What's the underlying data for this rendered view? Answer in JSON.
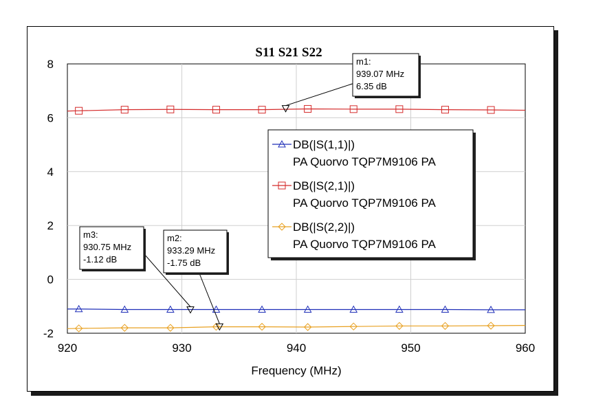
{
  "chart_data": {
    "type": "line",
    "title": "S11 S21 S22",
    "xlabel": "Frequency (MHz)",
    "ylabel": "",
    "xlim": [
      920,
      960
    ],
    "ylim": [
      -2,
      8
    ],
    "xticks": [
      "920",
      "930",
      "940",
      "950",
      "960"
    ],
    "yticks": [
      "8",
      "6",
      "4",
      "2",
      "0",
      "-2"
    ],
    "grid": true,
    "legend_position": "right",
    "series": [
      {
        "name": "DB(|S(1,1)|)",
        "subname": "PA Quorvo TQP7M9106 PA",
        "color": "#1f2fb8",
        "marker": "triangle-up",
        "x": [
          920,
          921,
          925,
          929,
          933,
          937,
          941,
          945,
          949,
          953,
          957,
          960
        ],
        "y": [
          -1.1,
          -1.1,
          -1.12,
          -1.12,
          -1.12,
          -1.12,
          -1.12,
          -1.12,
          -1.12,
          -1.12,
          -1.13,
          -1.13
        ]
      },
      {
        "name": "DB(|S(2,1)|)",
        "subname": "PA Quorvo TQP7M9106 PA",
        "color": "#d42a2a",
        "marker": "square",
        "x": [
          920,
          921,
          925,
          929,
          933,
          937,
          941,
          945,
          949,
          953,
          957,
          960
        ],
        "y": [
          6.25,
          6.26,
          6.3,
          6.31,
          6.3,
          6.3,
          6.33,
          6.32,
          6.32,
          6.3,
          6.29,
          6.28
        ]
      },
      {
        "name": "DB(|S(2,2)|)",
        "subname": "PA Quorvo TQP7M9106 PA",
        "color": "#e8a020",
        "marker": "diamond",
        "x": [
          920,
          921,
          925,
          929,
          933,
          937,
          941,
          945,
          949,
          953,
          957,
          960
        ],
        "y": [
          -1.83,
          -1.82,
          -1.8,
          -1.8,
          -1.76,
          -1.76,
          -1.77,
          -1.75,
          -1.73,
          -1.73,
          -1.72,
          -1.71
        ]
      }
    ],
    "markers": [
      {
        "label": "m1:",
        "freq_text": "939.07 MHz",
        "val_text": "6.35 dB",
        "x": 939.07,
        "y": 6.35
      },
      {
        "label": "m2:",
        "freq_text": "933.29 MHz",
        "val_text": "-1.75 dB",
        "x": 933.29,
        "y": -1.75
      },
      {
        "label": "m3:",
        "freq_text": "930.75 MHz",
        "val_text": "-1.12 dB",
        "x": 930.75,
        "y": -1.12
      }
    ]
  }
}
